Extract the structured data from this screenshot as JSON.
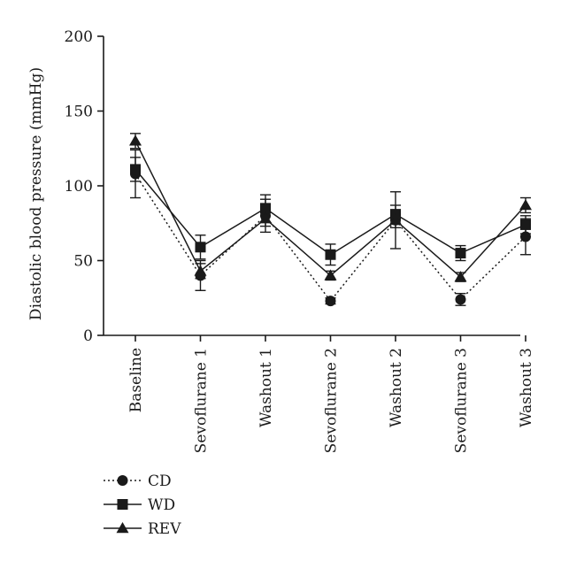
{
  "chart_data": {
    "type": "line",
    "title": "",
    "xlabel": "",
    "ylabel": "Diastolic blood pressure (mmHg)",
    "ylim": [
      0,
      200
    ],
    "yticks": [
      0,
      50,
      100,
      150,
      200
    ],
    "categories": [
      "Baseline",
      "Sevoflurane 1",
      "Washout 1",
      "Sevoflurane 2",
      "Washout 2",
      "Sevoflurane 3",
      "Washout 3"
    ],
    "grid": false,
    "legend_position": "bottom-left",
    "series": [
      {
        "name": "CD",
        "marker": "circle",
        "line_style": "dotted",
        "values": [
          108,
          40,
          80,
          23,
          77,
          24,
          66
        ],
        "errors": [
          16,
          10,
          11,
          2,
          19,
          4,
          12
        ]
      },
      {
        "name": "WD",
        "marker": "square",
        "line_style": "solid",
        "values": [
          111,
          59,
          85,
          54,
          81,
          55,
          74
        ],
        "errors": [
          8,
          8,
          9,
          7,
          6,
          5,
          6
        ]
      },
      {
        "name": "REV",
        "marker": "triangle",
        "line_style": "solid",
        "values": [
          130,
          43,
          78,
          40,
          77,
          39,
          87
        ],
        "errors": [
          5,
          5,
          5,
          3,
          5,
          3,
          5
        ]
      }
    ]
  },
  "colors": {
    "ink": "#1a1a1a"
  }
}
